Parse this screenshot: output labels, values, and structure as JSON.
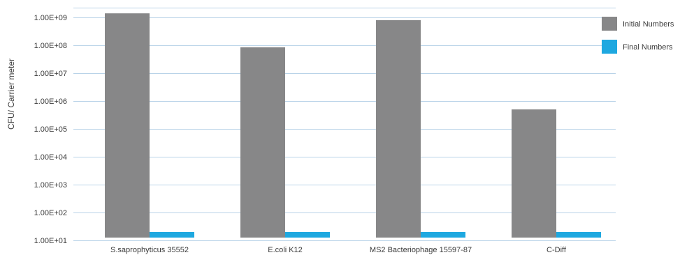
{
  "chart_data": {
    "type": "bar",
    "scale": "log",
    "ylabel": "CFU/ Carrier meter",
    "ylim": [
      10,
      1000000000
    ],
    "y_ticks": [
      "1.00E+01",
      "1.00E+02",
      "1.00E+03",
      "1.00E+04",
      "1.00E+05",
      "1.00E+06",
      "1.00E+07",
      "1.00E+08",
      "1.00E+09"
    ],
    "y_tick_values": [
      10,
      100,
      1000,
      10000,
      100000,
      1000000,
      10000000,
      100000000,
      1000000000
    ],
    "categories": [
      "S.saprophyticus 35552",
      "E.coli K12",
      "MS2 Bacteriophage 15597-87",
      "C-Diff"
    ],
    "series": [
      {
        "name": "Initial Numbers",
        "color": "#878788",
        "values": [
          1400000000,
          85000000,
          800000000,
          500000
        ]
      },
      {
        "name": "Final Numbers",
        "color": "#1ea8e0",
        "values": [
          20,
          20,
          20,
          20
        ]
      }
    ],
    "legend_position": "top-right",
    "grid": true
  }
}
